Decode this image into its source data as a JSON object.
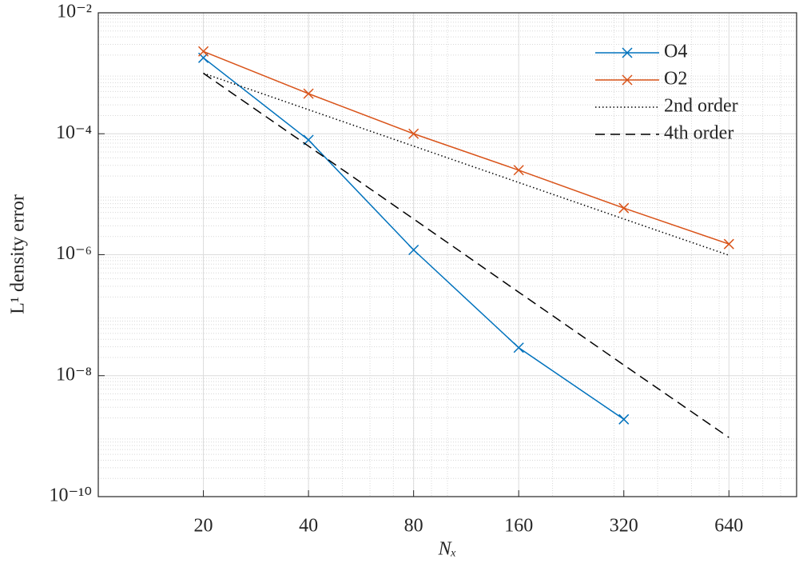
{
  "chart_data": {
    "type": "line",
    "xlabel": "Nₓ",
    "ylabel": "L¹ density error",
    "x": [
      20,
      40,
      80,
      160,
      320,
      640
    ],
    "series": [
      {
        "name": "O4",
        "color": "#0072bd",
        "marker": "x",
        "dash": "solid",
        "values": [
          0.0018,
          7.9e-05,
          1.2e-06,
          2.9e-08,
          1.9e-09,
          null
        ]
      },
      {
        "name": "O2",
        "color": "#d95319",
        "marker": "x",
        "dash": "solid",
        "values": [
          0.0023,
          0.00046,
          0.0001,
          2.5e-05,
          5.9e-06,
          1.5e-06
        ]
      },
      {
        "name": "2nd order",
        "color": "#000000",
        "marker": "none",
        "dash": "dotted",
        "values": [
          0.001,
          0.00025,
          6.25e-05,
          1.5625e-05,
          3.9e-06,
          9.8e-07
        ]
      },
      {
        "name": "4th order",
        "color": "#000000",
        "marker": "none",
        "dash": "dashed",
        "values": [
          0.001,
          6.25e-05,
          3.9e-06,
          2.4e-07,
          1.5e-08,
          9.5e-10
        ]
      }
    ],
    "xscale": "log",
    "yscale": "log",
    "xlim": [
      10,
      1000
    ],
    "ylim": [
      1e-10,
      0.01
    ],
    "xticks": [
      20,
      40,
      80,
      160,
      320,
      640
    ],
    "yticks": [
      {
        "value": 1e-10,
        "label": "10⁻¹⁰"
      },
      {
        "value": 1e-08,
        "label": "10⁻⁸"
      },
      {
        "value": 1e-06,
        "label": "10⁻⁶"
      },
      {
        "value": 0.0001,
        "label": "10⁻⁴"
      },
      {
        "value": 0.01,
        "label": "10⁻²"
      }
    ],
    "grid": true,
    "minor_grid": true,
    "legend": "upper right"
  }
}
